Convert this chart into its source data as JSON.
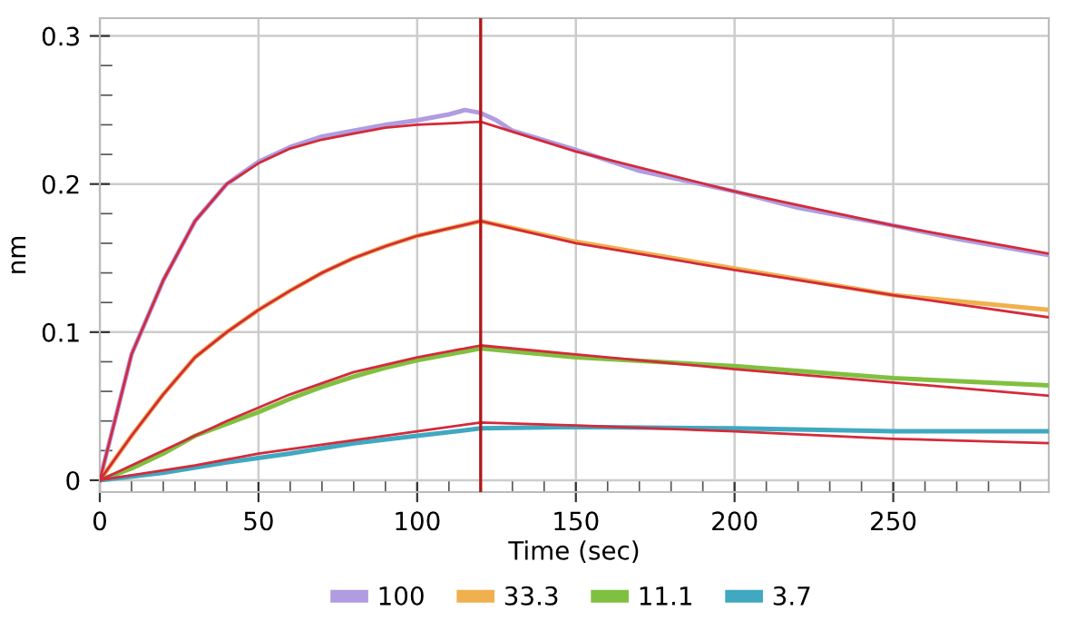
{
  "chart_data": {
    "type": "line",
    "xlabel": "Time (sec)",
    "ylabel": "nm",
    "xlim": [
      0,
      299
    ],
    "ylim": [
      -0.008,
      0.312
    ],
    "xticks": [
      0,
      50,
      100,
      150,
      200,
      250
    ],
    "yticks": [
      0,
      0.1,
      0.2,
      0.3
    ],
    "grid": true,
    "legend": "bottom",
    "marker": "none",
    "line_style": "solid",
    "ref_lines": [
      {
        "axis": "x",
        "value": 120,
        "color": "#b01818"
      }
    ],
    "series": [
      {
        "name": "100",
        "color": "#b09ce0",
        "x": [
          0,
          10,
          20,
          30,
          40,
          50,
          60,
          70,
          80,
          90,
          100,
          110,
          115,
          120,
          125,
          130,
          150,
          170,
          200,
          220,
          250,
          270,
          299
        ],
        "values": [
          0,
          0.085,
          0.135,
          0.175,
          0.2,
          0.215,
          0.225,
          0.232,
          0.236,
          0.24,
          0.243,
          0.247,
          0.25,
          0.248,
          0.243,
          0.236,
          0.223,
          0.209,
          0.195,
          0.184,
          0.172,
          0.163,
          0.152
        ]
      },
      {
        "name": "33.3",
        "color": "#f0b050",
        "x": [
          0,
          10,
          20,
          30,
          40,
          50,
          60,
          70,
          80,
          90,
          100,
          110,
          120,
          150,
          200,
          250,
          299
        ],
        "values": [
          0,
          0.03,
          0.058,
          0.083,
          0.1,
          0.115,
          0.128,
          0.14,
          0.15,
          0.158,
          0.165,
          0.17,
          0.175,
          0.161,
          0.143,
          0.125,
          0.115
        ]
      },
      {
        "name": "11.1",
        "color": "#80c040",
        "x": [
          0,
          10,
          20,
          30,
          40,
          50,
          60,
          70,
          80,
          90,
          100,
          110,
          120,
          150,
          200,
          250,
          299
        ],
        "values": [
          0,
          0.008,
          0.018,
          0.03,
          0.038,
          0.046,
          0.055,
          0.063,
          0.07,
          0.076,
          0.081,
          0.085,
          0.089,
          0.083,
          0.077,
          0.069,
          0.064
        ]
      },
      {
        "name": "3.7",
        "color": "#40a8c0",
        "x": [
          0,
          20,
          40,
          60,
          80,
          100,
          120,
          150,
          200,
          250,
          299
        ],
        "values": [
          0,
          0.005,
          0.012,
          0.018,
          0.025,
          0.03,
          0.035,
          0.036,
          0.035,
          0.033,
          0.033
        ]
      },
      {
        "color": "#d42a3a",
        "x": [
          0,
          10,
          20,
          30,
          40,
          50,
          60,
          70,
          80,
          90,
          100,
          110,
          120,
          150,
          200,
          250,
          299
        ],
        "values": [
          0,
          0.085,
          0.135,
          0.175,
          0.2,
          0.214,
          0.224,
          0.23,
          0.234,
          0.238,
          0.24,
          0.241,
          0.242,
          0.222,
          0.195,
          0.172,
          0.153
        ]
      },
      {
        "color": "#d42a3a",
        "x": [
          0,
          10,
          20,
          30,
          40,
          50,
          60,
          70,
          80,
          90,
          100,
          110,
          120,
          150,
          200,
          250,
          299
        ],
        "values": [
          0,
          0.03,
          0.058,
          0.083,
          0.1,
          0.115,
          0.128,
          0.14,
          0.15,
          0.158,
          0.165,
          0.17,
          0.175,
          0.16,
          0.142,
          0.125,
          0.11
        ]
      },
      {
        "color": "#d42a3a",
        "x": [
          0,
          20,
          40,
          50,
          60,
          80,
          100,
          120,
          150,
          200,
          250,
          299
        ],
        "values": [
          0,
          0.02,
          0.04,
          0.049,
          0.058,
          0.073,
          0.083,
          0.091,
          0.085,
          0.075,
          0.066,
          0.057
        ]
      },
      {
        "color": "#d42a3a",
        "x": [
          0,
          30,
          50,
          80,
          100,
          120,
          150,
          200,
          250,
          299
        ],
        "values": [
          0,
          0.01,
          0.018,
          0.027,
          0.033,
          0.039,
          0.037,
          0.033,
          0.028,
          0.025
        ]
      }
    ]
  }
}
